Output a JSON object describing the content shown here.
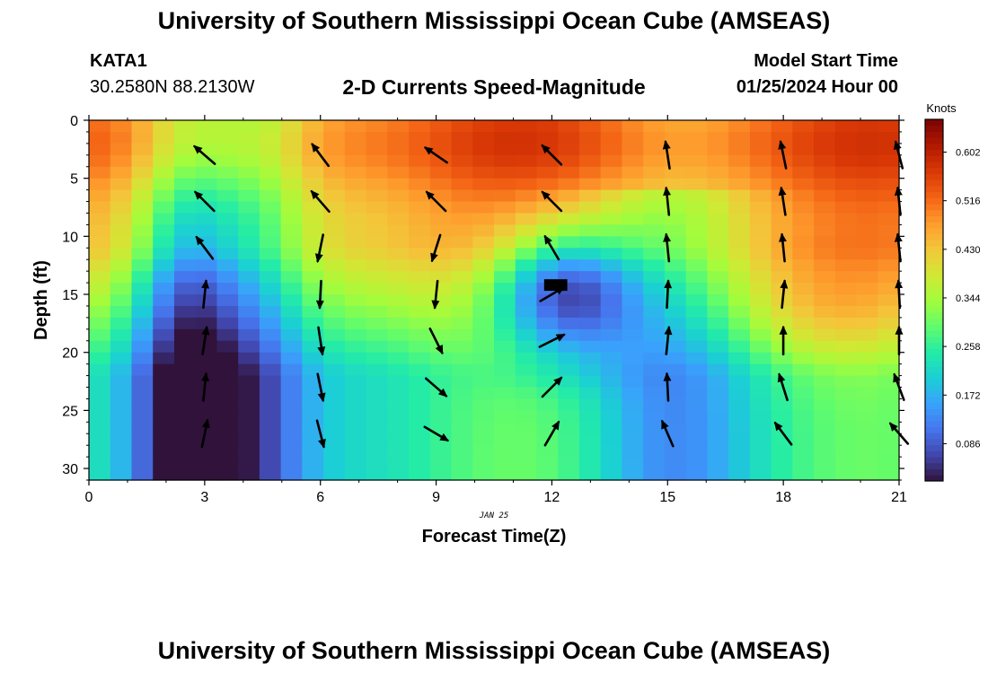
{
  "header": {
    "title": "University of Southern Mississippi Ocean Cube (AMSEAS)",
    "station": "KATA1",
    "coords": "30.2580N  88.2130W",
    "subtitle": "2-D Currents Speed-Magnitude",
    "model_start_label": "Model Start Time",
    "model_start_value": "01/25/2024 Hour 00"
  },
  "footer": {
    "title": "University of Southern Mississippi Ocean Cube (AMSEAS)"
  },
  "chart_data": {
    "type": "heatmap",
    "title": "2-D Currents Speed-Magnitude",
    "xlabel": "Forecast Time(Z)",
    "ylabel": "Depth (ft)",
    "date_label": "JAN 25",
    "x_ticks": [
      0,
      3,
      6,
      9,
      12,
      15,
      18,
      21
    ],
    "y_ticks": [
      0,
      5,
      10,
      15,
      20,
      25,
      30
    ],
    "xlim": [
      0,
      21
    ],
    "ylim": [
      0,
      31
    ],
    "y_reversed": true,
    "colorbar": {
      "label": "Knots",
      "ticks": [
        "0.602",
        "0.516",
        "0.430",
        "0.344",
        "0.258",
        "0.172",
        "0.086"
      ],
      "range": [
        0.02,
        0.66
      ]
    },
    "colors": [
      "#30123b",
      "#4145ab",
      "#4675ed",
      "#39a2fc",
      "#1bcfd4",
      "#24eca6",
      "#61fc6c",
      "#a4fc3b",
      "#d1e834",
      "#f3c63a",
      "#fe9b2d",
      "#f36315",
      "#d93806",
      "#b11901",
      "#7a0402"
    ],
    "arrow_times": [
      3,
      6,
      9,
      12,
      15,
      18,
      21
    ],
    "arrow_depths": [
      3,
      7,
      11,
      15,
      19,
      23,
      27
    ],
    "arrows": [
      [
        {
          "u": -0.75,
          "v": 0.65
        },
        {
          "u": -0.6,
          "v": 0.8
        },
        {
          "u": -0.8,
          "v": 0.55
        },
        {
          "u": -0.7,
          "v": 0.7
        },
        {
          "u": -0.15,
          "v": 0.99
        },
        {
          "u": -0.2,
          "v": 0.98
        },
        {
          "u": -0.25,
          "v": 0.97
        }
      ],
      [
        {
          "u": -0.7,
          "v": 0.7
        },
        {
          "u": -0.65,
          "v": 0.75
        },
        {
          "u": -0.7,
          "v": 0.7
        },
        {
          "u": -0.7,
          "v": 0.7
        },
        {
          "u": -0.1,
          "v": 0.99
        },
        {
          "u": -0.15,
          "v": 0.99
        },
        {
          "u": -0.1,
          "v": 0.99
        }
      ],
      [
        {
          "u": -0.6,
          "v": 0.8
        },
        {
          "u": -0.2,
          "v": -0.98
        },
        {
          "u": -0.3,
          "v": -0.95
        },
        {
          "u": -0.5,
          "v": 0.85
        },
        {
          "u": -0.1,
          "v": 0.99
        },
        {
          "u": -0.1,
          "v": 0.99
        },
        {
          "u": -0.1,
          "v": 0.99
        }
      ],
      [
        {
          "u": 0.1,
          "v": 0.99
        },
        {
          "u": -0.05,
          "v": -0.99
        },
        {
          "u": -0.1,
          "v": -0.99
        },
        {
          "u": 0.85,
          "v": 0.5
        },
        {
          "u": 0.05,
          "v": 0.99
        },
        {
          "u": 0.1,
          "v": 0.99
        },
        {
          "u": -0.05,
          "v": 0.99
        }
      ],
      [
        {
          "u": 0.15,
          "v": 0.99
        },
        {
          "u": 0.15,
          "v": -0.99
        },
        {
          "u": 0.45,
          "v": -0.9
        },
        {
          "u": 0.9,
          "v": 0.45
        },
        {
          "u": 0.1,
          "v": 0.99
        },
        {
          "u": 0.0,
          "v": 1.0
        },
        {
          "u": 0.0,
          "v": 1.0
        }
      ],
      [
        {
          "u": 0.1,
          "v": 0.99
        },
        {
          "u": 0.2,
          "v": -0.98
        },
        {
          "u": 0.75,
          "v": -0.65
        },
        {
          "u": 0.7,
          "v": 0.7
        },
        {
          "u": -0.05,
          "v": 0.99
        },
        {
          "u": -0.3,
          "v": 0.95
        },
        {
          "u": -0.35,
          "v": 0.94
        }
      ],
      [
        {
          "u": 0.2,
          "v": 0.98
        },
        {
          "u": 0.25,
          "v": -0.97
        },
        {
          "u": 0.85,
          "v": -0.5
        },
        {
          "u": 0.5,
          "v": 0.86
        },
        {
          "u": -0.4,
          "v": 0.92
        },
        {
          "u": -0.6,
          "v": 0.8
        },
        {
          "u": -0.65,
          "v": 0.75
        }
      ]
    ]
  }
}
